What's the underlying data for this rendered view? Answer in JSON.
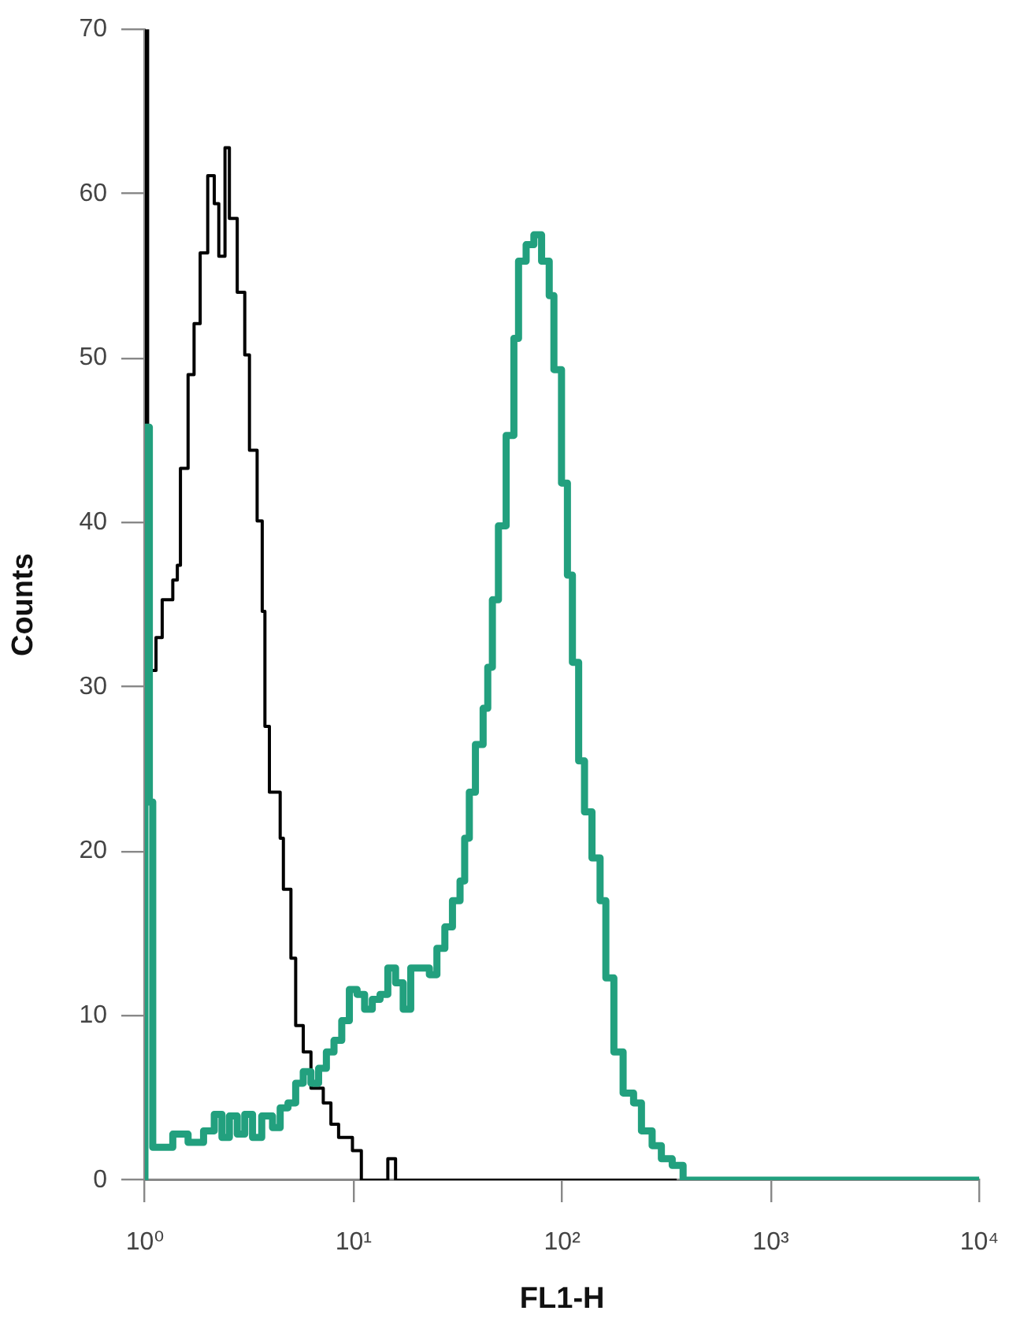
{
  "chart_data": {
    "type": "step",
    "xlabel": "FL1-H",
    "ylabel": "Counts",
    "log": "x",
    "grid": false,
    "legend": false,
    "xlim": [
      1,
      10000
    ],
    "xticks": [
      {
        "value": 1,
        "label": "10⁰"
      },
      {
        "value": 10,
        "label": "10¹"
      },
      {
        "value": 100,
        "label": "10²"
      },
      {
        "value": 1000,
        "label": "10³"
      },
      {
        "value": 10000,
        "label": "10⁴"
      }
    ],
    "ylim": [
      0,
      70
    ],
    "yticks": [
      0,
      10,
      20,
      30,
      40,
      50,
      60,
      70
    ],
    "series": [
      {
        "color": "#000000",
        "x": [
          1,
          1,
          1.03,
          1.13,
          1.21,
          1.36,
          1.43,
          1.48,
          1.61,
          1.72,
          1.84,
          2,
          2.15,
          2.26,
          2.42,
          2.54,
          2.77,
          3.01,
          3.17,
          3.45,
          3.65,
          3.76,
          3.95,
          4.45,
          4.61,
          5.01,
          5.28,
          5.74,
          6.25,
          7.16,
          7.79,
          8.48,
          9.88,
          10.9,
          14.6,
          15.9,
          354
        ],
        "values": [
          0,
          70,
          31,
          33,
          35.3,
          36.5,
          37.4,
          43.3,
          49,
          52.1,
          56.4,
          61.1,
          59.4,
          56.2,
          62.8,
          58.5,
          54,
          50.2,
          44.4,
          40.1,
          34.6,
          27.6,
          23.6,
          20.8,
          17.7,
          13.5,
          9.4,
          7.8,
          5.6,
          4.7,
          3.4,
          2.6,
          1.8,
          0,
          1.3,
          0,
          0
        ]
      },
      {
        "color": "#22a07e",
        "x": [
          1,
          1,
          1.05,
          1.09,
          1.36,
          1.61,
          1.91,
          2.15,
          2.34,
          2.54,
          2.77,
          3.01,
          3.28,
          3.63,
          4.09,
          4.45,
          4.85,
          5.28,
          5.74,
          6.25,
          6.8,
          7.41,
          8.06,
          8.78,
          9.55,
          10.4,
          11.3,
          12.3,
          13.4,
          14.6,
          15.9,
          17.3,
          18.8,
          23.1,
          25.1,
          27.4,
          29.8,
          32.4,
          34.1,
          35.9,
          38.4,
          41.8,
          44,
          46.3,
          49.5,
          53.9,
          58.7,
          61.8,
          67.2,
          73.2,
          79.7,
          86.7,
          91.3,
          99.3,
          106,
          112,
          120,
          128,
          139,
          152,
          162,
          177,
          196,
          220,
          240,
          270,
          299,
          337,
          380,
          10000
        ],
        "values": [
          0,
          45.8,
          23,
          2,
          2.8,
          2.3,
          3,
          4,
          2.6,
          3.9,
          2.8,
          4,
          2.6,
          3.9,
          3.2,
          4.4,
          4.7,
          5.9,
          6.6,
          5.9,
          6.8,
          7.8,
          8.5,
          9.7,
          11.6,
          11.3,
          10.4,
          11,
          11.3,
          12.9,
          12,
          10.4,
          12.9,
          12.5,
          14.1,
          15.4,
          17,
          18.2,
          20.8,
          23.6,
          26.5,
          28.7,
          31.2,
          35.3,
          39.8,
          45.3,
          51.2,
          55.9,
          56.9,
          57.5,
          55.9,
          53.8,
          49.3,
          42.4,
          36.8,
          31.5,
          25.5,
          22.4,
          19.6,
          17,
          12.3,
          7.8,
          5.3,
          4.7,
          3,
          2.1,
          1.3,
          0.9,
          0,
          0
        ]
      }
    ]
  }
}
